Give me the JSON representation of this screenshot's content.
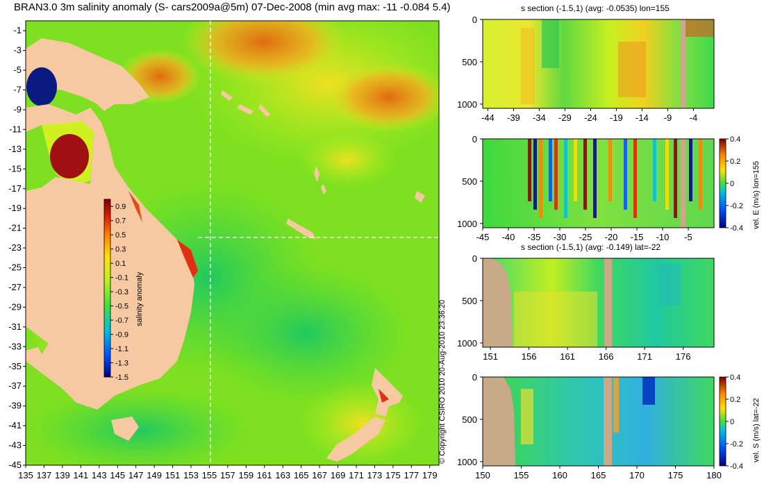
{
  "main_title": "BRAN3.0 3m salinity anomaly (S- cars2009a@5m) 07-Dec-2008 (min avg max: -11 -0.084 5.4)",
  "copyright": "© Copyright CSIRO 2010  20-Aug-2010 23:36:20",
  "colors": {
    "land": "#f7c9a3",
    "section_land": "#c8aa88",
    "ocean_base": "#70e000",
    "scale": [
      "#00007f",
      "#0050ff",
      "#00c0e0",
      "#40e040",
      "#c0f020",
      "#ffe000",
      "#ff8000",
      "#e02000",
      "#7f0000"
    ]
  },
  "chart_data": [
    {
      "type": "heatmap",
      "id": "map",
      "title": "BRAN3.0 3m salinity anomaly (S- cars2009a@5m) 07-Dec-2008 (min avg max: -11 -0.084 5.4)",
      "xlim": [
        135,
        180
      ],
      "ylim": [
        -45,
        0
      ],
      "x_ticks": [
        "135",
        "137",
        "139",
        "141",
        "143",
        "145",
        "147",
        "149",
        "151",
        "153",
        "155",
        "157",
        "159",
        "161",
        "163",
        "165",
        "167",
        "169",
        "171",
        "173",
        "175",
        "177",
        "179"
      ],
      "y_ticks": [
        "-1",
        "-3",
        "-5",
        "-7",
        "-9",
        "-11",
        "-13",
        "-15",
        "-17",
        "-19",
        "-21",
        "-23",
        "-25",
        "-27",
        "-29",
        "-31",
        "-33",
        "-35",
        "-37",
        "-39",
        "-41",
        "-43",
        "-45"
      ],
      "section_lines": {
        "lon": 155,
        "lat": -22
      },
      "colorbar": {
        "label": "salinity anomaly",
        "range": [
          -1.5,
          1.0
        ],
        "ticks": [
          "0.9",
          "0.7",
          "0.5",
          "0.3",
          "0.1",
          "-0.1",
          "-0.3",
          "-0.5",
          "-0.7",
          "-0.9",
          "-1.1",
          "-1.3",
          "-1.5"
        ]
      }
    },
    {
      "type": "heatmap",
      "id": "s-section-lon155",
      "title": "s section (-1.5,1) (avg: -0.0535) lon=155",
      "xlim": [
        -45,
        0
      ],
      "ylim": [
        1050,
        0
      ],
      "x_ticks": [
        "-44",
        "-39",
        "-34",
        "-29",
        "-24",
        "-19",
        "-14",
        "-9",
        "-4"
      ],
      "y_ticks": [
        "0",
        "500",
        "1000"
      ]
    },
    {
      "type": "heatmap",
      "id": "vel-e-section-lon155",
      "title": "",
      "xlim": [
        -45,
        0
      ],
      "ylim": [
        1050,
        0
      ],
      "x_ticks": [
        "-45",
        "-40",
        "-35",
        "-30",
        "-25",
        "-20",
        "-15",
        "-10",
        "-5"
      ],
      "y_ticks": [
        "0",
        "500",
        "1000"
      ],
      "colorbar": {
        "label": "vel. E (m/s) lon=155",
        "range": [
          -0.4,
          0.4
        ],
        "ticks": [
          "0.4",
          "0.2",
          "0",
          "-0.2",
          "-0.4"
        ]
      }
    },
    {
      "type": "heatmap",
      "id": "s-section-lat-22",
      "title": "s section (-1.5,1) (avg: -0.149) lat=-22",
      "xlim": [
        150,
        180
      ],
      "ylim": [
        1050,
        0
      ],
      "x_ticks": [
        "151",
        "156",
        "161",
        "166",
        "171",
        "176"
      ],
      "y_ticks": [
        "0",
        "500",
        "1000"
      ]
    },
    {
      "type": "heatmap",
      "id": "vel-s-section-lat-22",
      "title": "",
      "xlim": [
        150,
        180
      ],
      "ylim": [
        1050,
        0
      ],
      "x_ticks": [
        "150",
        "155",
        "160",
        "165",
        "170",
        "175",
        "180"
      ],
      "y_ticks": [
        "0",
        "500",
        "1000"
      ],
      "colorbar": {
        "label": "vel. S (m/s) lat=-22",
        "range": [
          -0.4,
          0.4
        ],
        "ticks": [
          "0.4",
          "0.2",
          "0",
          "-0.2",
          "-0.4"
        ]
      }
    }
  ]
}
